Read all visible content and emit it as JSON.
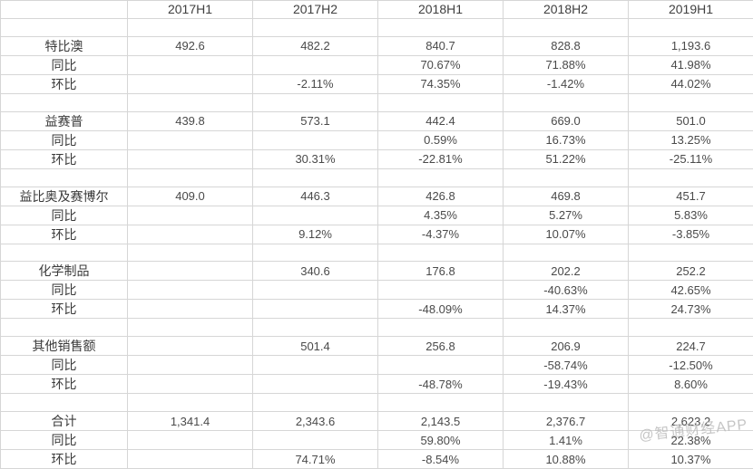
{
  "watermark": {
    "text": "@智通财经APP",
    "color": "#bcbcbc"
  },
  "colors": {
    "background": "#ffffff",
    "gridline": "#d6d6d6",
    "text": "#4a4a4a"
  },
  "chart_data": {
    "type": "table",
    "title": "",
    "columns": [
      "",
      "2017H1",
      "2017H2",
      "2018H1",
      "2018H2",
      "2019H1"
    ],
    "legend_position": "none",
    "grid": true,
    "rows": [
      [
        "",
        "2017H1",
        "2017H2",
        "2018H1",
        "2018H2",
        "2019H1"
      ],
      [
        "",
        "",
        "",
        "",
        "",
        ""
      ],
      [
        "特比澳",
        "492.6",
        "482.2",
        "840.7",
        "828.8",
        "1,193.6"
      ],
      [
        "同比",
        "",
        "",
        "70.67%",
        "71.88%",
        "41.98%"
      ],
      [
        "环比",
        "",
        "-2.11%",
        "74.35%",
        "-1.42%",
        "44.02%"
      ],
      [
        "",
        "",
        "",
        "",
        "",
        ""
      ],
      [
        "益赛普",
        "439.8",
        "573.1",
        "442.4",
        "669.0",
        "501.0"
      ],
      [
        "同比",
        "",
        "",
        "0.59%",
        "16.73%",
        "13.25%"
      ],
      [
        "环比",
        "",
        "30.31%",
        "-22.81%",
        "51.22%",
        "-25.11%"
      ],
      [
        "",
        "",
        "",
        "",
        "",
        ""
      ],
      [
        "益比奥及赛博尔",
        "409.0",
        "446.3",
        "426.8",
        "469.8",
        "451.7"
      ],
      [
        "同比",
        "",
        "",
        "4.35%",
        "5.27%",
        "5.83%"
      ],
      [
        "环比",
        "",
        "9.12%",
        "-4.37%",
        "10.07%",
        "-3.85%"
      ],
      [
        "",
        "",
        "",
        "",
        "",
        ""
      ],
      [
        "化学制品",
        "",
        "340.6",
        "176.8",
        "202.2",
        "252.2"
      ],
      [
        "同比",
        "",
        "",
        "",
        "-40.63%",
        "42.65%"
      ],
      [
        "环比",
        "",
        "",
        "-48.09%",
        "14.37%",
        "24.73%"
      ],
      [
        "",
        "",
        "",
        "",
        "",
        ""
      ],
      [
        "其他销售额",
        "",
        "501.4",
        "256.8",
        "206.9",
        "224.7"
      ],
      [
        "同比",
        "",
        "",
        "",
        "-58.74%",
        "-12.50%"
      ],
      [
        "环比",
        "",
        "",
        "-48.78%",
        "-19.43%",
        "8.60%"
      ],
      [
        "",
        "",
        "",
        "",
        "",
        ""
      ],
      [
        "合计",
        "1,341.4",
        "2,343.6",
        "2,143.5",
        "2,376.7",
        "2,623.2"
      ],
      [
        "同比",
        "",
        "",
        "59.80%",
        "1.41%",
        "22.38%"
      ],
      [
        "环比",
        "",
        "74.71%",
        "-8.54%",
        "10.88%",
        "10.37%"
      ]
    ]
  }
}
